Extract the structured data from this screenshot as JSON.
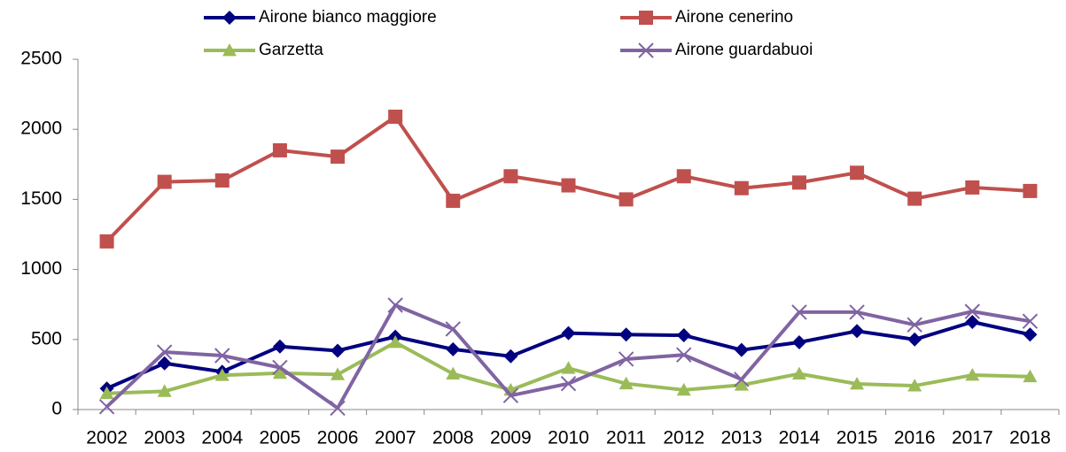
{
  "chart_data": {
    "type": "line",
    "categories": [
      "2002",
      "2003",
      "2004",
      "2005",
      "2006",
      "2007",
      "2008",
      "2009",
      "2010",
      "2011",
      "2012",
      "2013",
      "2014",
      "2015",
      "2016",
      "2017",
      "2018"
    ],
    "series": [
      {
        "name": "Airone bianco maggiore",
        "color": "#000080",
        "marker": "diamond",
        "values": [
          150,
          330,
          270,
          450,
          420,
          520,
          430,
          380,
          545,
          535,
          530,
          425,
          480,
          560,
          500,
          625,
          535
        ]
      },
      {
        "name": "Airone cenerino",
        "color": "#c0504d",
        "marker": "square",
        "values": [
          1200,
          1625,
          1635,
          1850,
          1805,
          2090,
          1490,
          1665,
          1600,
          1500,
          1665,
          1580,
          1620,
          1690,
          1505,
          1585,
          1560
        ]
      },
      {
        "name": "Garzetta",
        "color": "#9bbb59",
        "marker": "triangle",
        "values": [
          115,
          130,
          245,
          260,
          250,
          480,
          255,
          140,
          295,
          185,
          140,
          175,
          255,
          183,
          170,
          246,
          235
        ]
      },
      {
        "name": "Airone guardabuoi",
        "color": "#8064a2",
        "marker": "x",
        "values": [
          20,
          410,
          385,
          300,
          10,
          745,
          575,
          100,
          185,
          360,
          390,
          215,
          695,
          695,
          605,
          700,
          630
        ]
      }
    ],
    "ylim": [
      0,
      2500
    ],
    "yticks": [
      0,
      500,
      1000,
      1500,
      2000,
      2500
    ],
    "legend": "top"
  }
}
